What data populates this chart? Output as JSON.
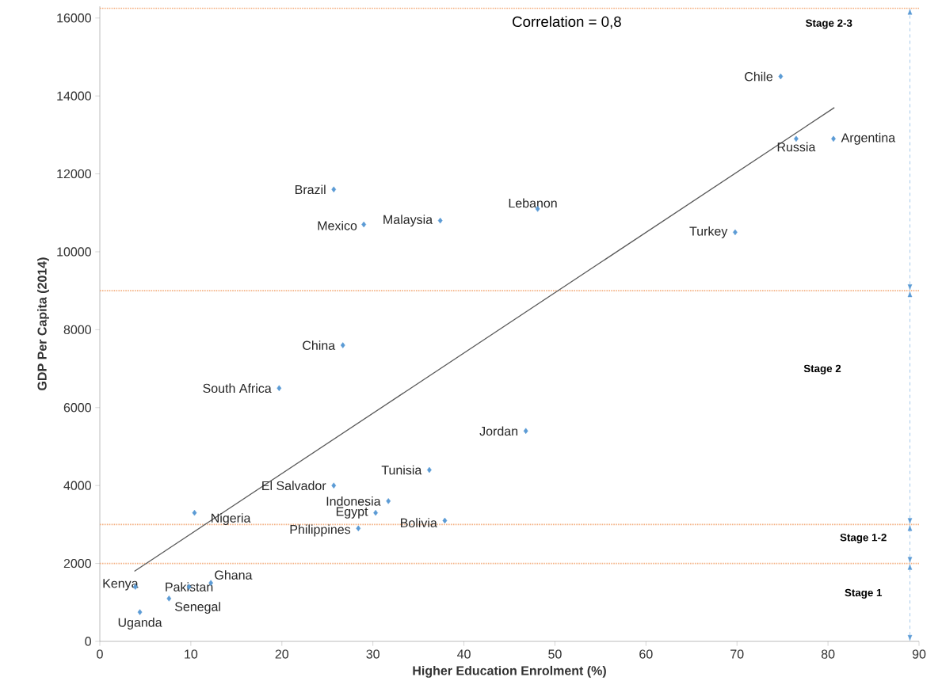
{
  "chart_data": {
    "type": "scatter",
    "xlabel": "Higher Education Enrolment (%)",
    "ylabel": "GDP Per Capita (2014)",
    "xlim": [
      0,
      90
    ],
    "xticks": [
      0,
      10,
      20,
      30,
      40,
      50,
      60,
      70,
      80,
      90
    ],
    "ylim": [
      0,
      16300
    ],
    "yticks": [
      0,
      2000,
      4000,
      6000,
      8000,
      10000,
      12000,
      14000,
      16000
    ],
    "series": [
      {
        "color": "#5b9bd5",
        "marker": "diamond",
        "x": [
          74.8,
          76.5,
          80.6,
          25.7,
          37.4,
          29.0,
          48.1,
          69.8,
          26.7,
          19.7,
          46.8,
          36.2,
          25.7,
          31.7,
          30.3,
          10.4,
          37.9,
          28.4,
          12.2,
          3.9,
          9.8,
          7.6,
          4.4
        ],
        "values": [
          14500,
          12900,
          12900,
          11600,
          10800,
          10700,
          11100,
          10500,
          7600,
          6500,
          5400,
          4400,
          4000,
          3600,
          3300,
          3300,
          3100,
          2900,
          1500,
          1400,
          1400,
          1100,
          750
        ]
      },
      {
        "type": "line",
        "color": "#595959",
        "marker": "none",
        "x": [
          3.8,
          80.7
        ],
        "values": [
          1800,
          13700
        ]
      }
    ],
    "ref_lines": [
      {
        "axis": "y",
        "value": 2000,
        "color": "#f4b183",
        "line_style": "dotted"
      },
      {
        "axis": "y",
        "value": 3000,
        "color": "#f4b183",
        "line_style": "dotted"
      },
      {
        "axis": "y",
        "value": 9000,
        "color": "#f4b183",
        "line_style": "dotted"
      },
      {
        "axis": "y",
        "value": 16250,
        "color": "#f4b183",
        "line_style": "dotted"
      }
    ],
    "annotations": [
      "Correlation = 0,8",
      {
        "text": "Chile",
        "x": 74.8,
        "y": 14500
      },
      {
        "text": "Russia",
        "x": 76.5,
        "y": 12900
      },
      {
        "text": "Argentina",
        "x": 80.6,
        "y": 12900
      },
      {
        "text": "Brazil",
        "x": 25.7,
        "y": 11600
      },
      {
        "text": "Malaysia",
        "x": 37.4,
        "y": 10800
      },
      {
        "text": "Mexico",
        "x": 29.0,
        "y": 10700
      },
      {
        "text": "Lebanon",
        "x": 48.1,
        "y": 11100
      },
      {
        "text": "Turkey",
        "x": 69.8,
        "y": 10500
      },
      {
        "text": "China",
        "x": 26.7,
        "y": 7600
      },
      {
        "text": "South Africa",
        "x": 19.7,
        "y": 6500
      },
      {
        "text": "Jordan",
        "x": 46.8,
        "y": 5400
      },
      {
        "text": "Tunisia",
        "x": 36.2,
        "y": 4400
      },
      {
        "text": "El Salvador",
        "x": 25.7,
        "y": 4000
      },
      {
        "text": "Indonesia",
        "x": 31.7,
        "y": 3600
      },
      {
        "text": "Egypt",
        "x": 30.3,
        "y": 3300
      },
      {
        "text": "Nigeria",
        "x": 10.4,
        "y": 3300
      },
      {
        "text": "Bolivia",
        "x": 37.9,
        "y": 3100
      },
      {
        "text": "Philippines",
        "x": 28.4,
        "y": 2900
      },
      {
        "text": "Ghana",
        "x": 12.2,
        "y": 1500
      },
      {
        "text": "Kenya",
        "x": 3.9,
        "y": 1400
      },
      {
        "text": "Pakistan",
        "x": 9.8,
        "y": 1400
      },
      {
        "text": "Senegal",
        "x": 7.6,
        "y": 1100
      },
      {
        "text": "Uganda",
        "x": 4.4,
        "y": 750
      },
      "Stage 1",
      "Stage 1-2",
      "Stage 2",
      "Stage 2-3"
    ]
  }
}
